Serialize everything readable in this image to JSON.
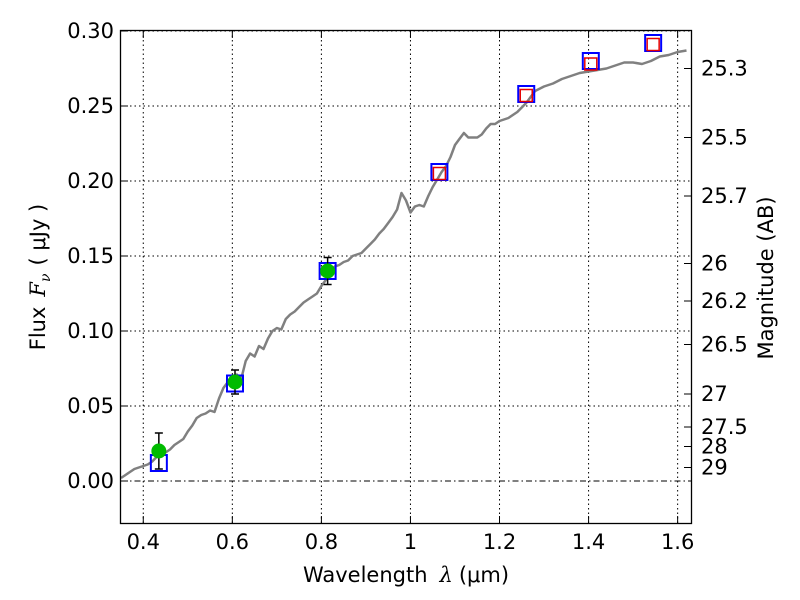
{
  "chart_data": {
    "type": "scatter",
    "xlabel": "Wavelength",
    "xlabel_symbol": "λ",
    "xlabel_unit": "(μm)",
    "ylabel": "Flux",
    "ylabel_symbol": "F",
    "ylabel_subscript": "ν",
    "ylabel_unit": "( μJy )",
    "y2label": "Magnitude (AB)",
    "xlim": [
      0.35,
      1.63
    ],
    "ylim": [
      -0.028,
      0.3
    ],
    "xticks": [
      {
        "value": 0.4,
        "label": "0.4"
      },
      {
        "value": 0.6,
        "label": "0.6"
      },
      {
        "value": 0.8,
        "label": "0.8"
      },
      {
        "value": 1.0,
        "label": "1"
      },
      {
        "value": 1.2,
        "label": "1.2"
      },
      {
        "value": 1.4,
        "label": "1.4"
      },
      {
        "value": 1.6,
        "label": "1.6"
      }
    ],
    "yticks": [
      {
        "value": 0.0,
        "label": "0.00"
      },
      {
        "value": 0.05,
        "label": "0.05"
      },
      {
        "value": 0.1,
        "label": "0.10"
      },
      {
        "value": 0.15,
        "label": "0.15"
      },
      {
        "value": 0.2,
        "label": "0.20"
      },
      {
        "value": 0.25,
        "label": "0.25"
      },
      {
        "value": 0.3,
        "label": "0.30"
      }
    ],
    "y2ticks": [
      {
        "flux": 0.275,
        "label": "25.3"
      },
      {
        "flux": 0.229,
        "label": "25.5"
      },
      {
        "flux": 0.19,
        "label": "25.7"
      },
      {
        "flux": 0.145,
        "label": "26"
      },
      {
        "flux": 0.12,
        "label": "26.2"
      },
      {
        "flux": 0.091,
        "label": "26.5"
      },
      {
        "flux": 0.058,
        "label": "27"
      },
      {
        "flux": 0.036,
        "label": "27.5"
      },
      {
        "flux": 0.023,
        "label": "28"
      },
      {
        "flux": 0.009,
        "label": "29"
      }
    ],
    "grid": true,
    "series": [
      {
        "name": "model SED",
        "kind": "line",
        "color": "#808080",
        "x": [
          0.35,
          0.36,
          0.37,
          0.38,
          0.39,
          0.4,
          0.41,
          0.42,
          0.43,
          0.44,
          0.45,
          0.46,
          0.47,
          0.48,
          0.49,
          0.5,
          0.51,
          0.52,
          0.53,
          0.54,
          0.55,
          0.56,
          0.57,
          0.58,
          0.59,
          0.6,
          0.61,
          0.62,
          0.63,
          0.64,
          0.65,
          0.66,
          0.67,
          0.68,
          0.69,
          0.7,
          0.71,
          0.72,
          0.73,
          0.74,
          0.75,
          0.76,
          0.77,
          0.78,
          0.79,
          0.8,
          0.81,
          0.82,
          0.83,
          0.84,
          0.85,
          0.86,
          0.87,
          0.88,
          0.89,
          0.9,
          0.91,
          0.92,
          0.93,
          0.94,
          0.95,
          0.96,
          0.97,
          0.98,
          0.99,
          1.0,
          1.01,
          1.02,
          1.03,
          1.04,
          1.05,
          1.06,
          1.07,
          1.08,
          1.09,
          1.1,
          1.11,
          1.12,
          1.13,
          1.14,
          1.15,
          1.16,
          1.17,
          1.18,
          1.19,
          1.2,
          1.22,
          1.24,
          1.26,
          1.28,
          1.3,
          1.32,
          1.34,
          1.36,
          1.38,
          1.4,
          1.42,
          1.44,
          1.46,
          1.48,
          1.5,
          1.52,
          1.54,
          1.56,
          1.58,
          1.6,
          1.62
        ],
        "y": [
          0.002,
          0.004,
          0.006,
          0.008,
          0.009,
          0.01,
          0.011,
          0.013,
          0.016,
          0.018,
          0.019,
          0.021,
          0.024,
          0.026,
          0.028,
          0.033,
          0.037,
          0.042,
          0.044,
          0.045,
          0.047,
          0.046,
          0.055,
          0.062,
          0.066,
          0.07,
          0.071,
          0.068,
          0.08,
          0.085,
          0.083,
          0.09,
          0.088,
          0.095,
          0.1,
          0.102,
          0.101,
          0.108,
          0.111,
          0.113,
          0.116,
          0.119,
          0.121,
          0.123,
          0.125,
          0.13,
          0.134,
          0.139,
          0.143,
          0.144,
          0.146,
          0.147,
          0.15,
          0.151,
          0.152,
          0.155,
          0.158,
          0.161,
          0.165,
          0.168,
          0.172,
          0.176,
          0.181,
          0.192,
          0.187,
          0.179,
          0.183,
          0.184,
          0.183,
          0.19,
          0.196,
          0.201,
          0.206,
          0.21,
          0.216,
          0.224,
          0.228,
          0.232,
          0.229,
          0.229,
          0.229,
          0.231,
          0.235,
          0.238,
          0.238,
          0.24,
          0.242,
          0.246,
          0.252,
          0.26,
          0.263,
          0.265,
          0.268,
          0.27,
          0.272,
          0.273,
          0.274,
          0.275,
          0.277,
          0.279,
          0.279,
          0.278,
          0.28,
          0.283,
          0.284,
          0.286,
          0.287
        ]
      },
      {
        "name": "photometry (blue squares)",
        "kind": "marker",
        "marker": "square-open",
        "color": "#0000ff",
        "x": [
          0.435,
          0.606,
          0.814,
          1.065,
          1.26,
          1.405,
          1.545
        ],
        "y": [
          0.012,
          0.065,
          0.14,
          0.206,
          0.258,
          0.28,
          0.292
        ]
      },
      {
        "name": "model photometry (red squares)",
        "kind": "marker",
        "marker": "square-open",
        "color": "#e60000",
        "x": [
          1.065,
          1.26,
          1.405,
          1.545
        ],
        "y": [
          0.205,
          0.257,
          0.278,
          0.291
        ]
      },
      {
        "name": "observed flux (green circles)",
        "kind": "marker",
        "marker": "circle",
        "color": "#00bb00",
        "x": [
          0.435,
          0.606,
          0.814
        ],
        "y": [
          0.02,
          0.066,
          0.14
        ],
        "yerr": [
          0.012,
          0.008,
          0.009
        ]
      }
    ]
  }
}
